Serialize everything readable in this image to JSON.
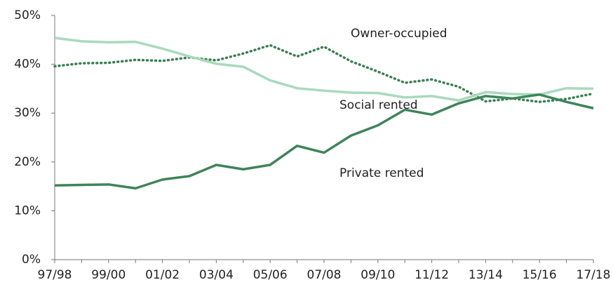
{
  "chart_data": {
    "type": "line",
    "categories": [
      "97/98",
      null,
      "99/00",
      null,
      "01/02",
      null,
      "03/04",
      null,
      "05/06",
      null,
      "07/08",
      null,
      "09/10",
      null,
      "11/12",
      null,
      "13/14",
      null,
      "15/16",
      null,
      "17/18"
    ],
    "series": [
      {
        "name": "Owner-occupied",
        "color": "#3b7f52",
        "line_style": "dotted",
        "values": [
          39.6,
          40.2,
          40.3,
          40.9,
          40.7,
          41.4,
          40.8,
          42.2,
          43.9,
          41.6,
          43.6,
          40.6,
          38.5,
          36.2,
          36.9,
          35.4,
          32.4,
          33.0,
          32.3,
          32.9,
          34.0
        ]
      },
      {
        "name": "Social rented",
        "color": "#a9d9bd",
        "line_style": "solid",
        "values": [
          45.4,
          44.7,
          44.5,
          44.6,
          43.2,
          41.6,
          40.1,
          39.5,
          36.7,
          35.1,
          34.6,
          34.2,
          34.1,
          33.2,
          33.5,
          32.6,
          34.3,
          33.9,
          33.8,
          35.1,
          35.0
        ]
      },
      {
        "name": "Private rented",
        "color": "#3e845a",
        "line_style": "solid",
        "values": [
          15.2,
          15.3,
          15.4,
          14.6,
          16.4,
          17.1,
          19.4,
          18.5,
          19.4,
          23.3,
          21.9,
          25.4,
          27.5,
          30.7,
          29.7,
          32.0,
          33.5,
          33.0,
          33.8,
          32.3,
          31.0
        ]
      }
    ],
    "ylim": [
      0,
      50
    ],
    "yticks": [
      {
        "value": 0,
        "label": "0%"
      },
      {
        "value": 10,
        "label": "10%"
      },
      {
        "value": 20,
        "label": "20%"
      },
      {
        "value": 30,
        "label": "30%"
      },
      {
        "value": 40,
        "label": "40%"
      },
      {
        "value": 50,
        "label": "50%"
      }
    ],
    "grid": false
  }
}
